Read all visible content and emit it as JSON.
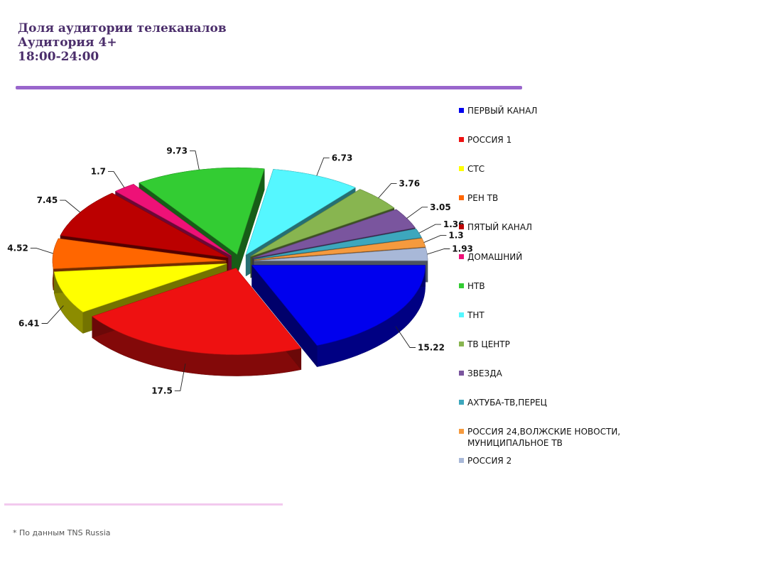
{
  "title_lines": [
    "Доля аудитории телеканалов",
    "Аудитория 4+",
    "18:00-24:00"
  ],
  "footnote": "* По данным TNS Russia",
  "chart_data": {
    "type": "pie",
    "title": "Доля аудитории телеканалов",
    "exploded": true,
    "three_d": true,
    "legend_position": "right",
    "slices": [
      {
        "name": "ПЕРВЫЙ КАНАЛ",
        "value": 15.22,
        "label": "15.22",
        "color": "#0000ee"
      },
      {
        "name": "РОССИЯ 1",
        "value": 17.5,
        "label": "17.5",
        "color": "#ee1111"
      },
      {
        "name": "СТС",
        "value": 6.41,
        "label": "6.41",
        "color": "#ffff00"
      },
      {
        "name": "РЕН ТВ",
        "value": 4.52,
        "label": "4.52",
        "color": "#ff6600"
      },
      {
        "name": "ПЯТЫЙ КАНАЛ",
        "value": 7.45,
        "label": "7.45",
        "color": "#bb0000"
      },
      {
        "name": "ДОМАШНИЙ",
        "value": 1.7,
        "label": "1.7",
        "color": "#ee1177"
      },
      {
        "name": "НТВ",
        "value": 9.73,
        "label": "9.73",
        "color": "#33cc33"
      },
      {
        "name": "ТНТ",
        "value": 6.73,
        "label": "6.73",
        "color": "#55f7ff"
      },
      {
        "name": "ТВ ЦЕНТР",
        "value": 3.76,
        "label": "3.76",
        "color": "#88b550"
      },
      {
        "name": "ЗВЕЗДА",
        "value": 3.05,
        "label": "3.05",
        "color": "#7a559e"
      },
      {
        "name": "АХТУБА-ТВ,ПЕРЕЦ",
        "value": 1.36,
        "label": "1.36",
        "color": "#3da7bd"
      },
      {
        "name": "РОССИЯ 24,ВОЛЖСКИЕ НОВОСТИ, МУНИЦИПАЛЬНОЕ ТВ",
        "value": 1.3,
        "label": "1.3",
        "color": "#f59a3e"
      },
      {
        "name": "РОССИЯ 2",
        "value": 1.93,
        "label": "1.93",
        "color": "#a8b8d8"
      }
    ]
  }
}
